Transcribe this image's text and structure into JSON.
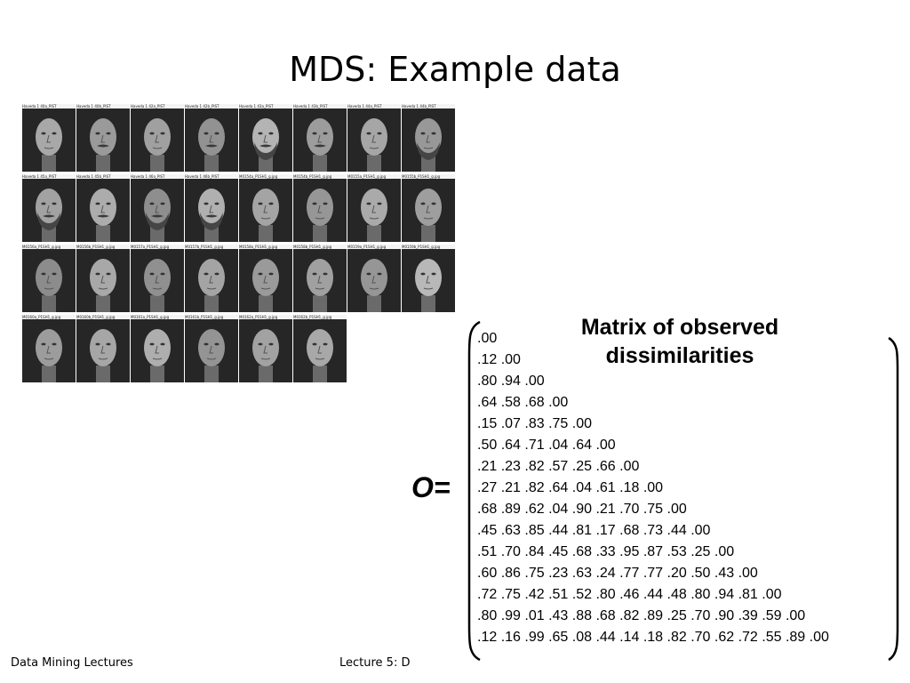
{
  "slide": {
    "title": "MDS: Example data"
  },
  "face_grid": {
    "rows": [
      [
        {
          "label": "Haveda 1 40a_PIST",
          "shade": "#a8a8a8",
          "mustache": false,
          "beard": false
        },
        {
          "label": "Haveda 1 40b_PIST",
          "shade": "#9a9a9a",
          "mustache": true,
          "beard": false
        },
        {
          "label": "Haveda 1 42a_PIST",
          "shade": "#a0a0a0",
          "mustache": false,
          "beard": false
        },
        {
          "label": "Haveda 1 42b_PIST",
          "shade": "#929292",
          "mustache": true,
          "beard": false
        },
        {
          "label": "Haveda 1 43a_PIST",
          "shade": "#b4b4b4",
          "mustache": true,
          "beard": true
        },
        {
          "label": "Haveda 1 43b_PIST",
          "shade": "#9c9c9c",
          "mustache": true,
          "beard": false
        },
        {
          "label": "Haveda 1 44a_PIST",
          "shade": "#a6a6a6",
          "mustache": false,
          "beard": false
        },
        {
          "label": "Haveda 1 44b_PIST",
          "shade": "#989898",
          "mustache": false,
          "beard": true
        }
      ],
      [
        {
          "label": "Haveda 1 45a_PIST",
          "shade": "#a2a2a2",
          "mustache": true,
          "beard": true
        },
        {
          "label": "Haveda 1 45b_PIST",
          "shade": "#acacac",
          "mustache": true,
          "beard": false
        },
        {
          "label": "Haveda 1 46a_PIST",
          "shade": "#8e8e8e",
          "mustache": true,
          "beard": true
        },
        {
          "label": "Haveda 1 46b_PIST",
          "shade": "#b0b0b0",
          "mustache": true,
          "beard": true
        },
        {
          "label": "M0154a_P1SH1_g.jpg",
          "shade": "#a4a4a4",
          "mustache": false,
          "beard": false
        },
        {
          "label": "M0154b_P1SH1_g.jpg",
          "shade": "#969696",
          "mustache": false,
          "beard": false
        },
        {
          "label": "M0155a_P1SH1_g.jpg",
          "shade": "#aaaaaa",
          "mustache": false,
          "beard": false
        },
        {
          "label": "M0155b_P1SH1_g.jpg",
          "shade": "#9e9e9e",
          "mustache": false,
          "beard": false
        }
      ],
      [
        {
          "label": "M0156a_P1SH1_g.jpg",
          "shade": "#8c8c8c",
          "mustache": false,
          "beard": false
        },
        {
          "label": "M0156b_P1SH1_g.jpg",
          "shade": "#a8a8a8",
          "mustache": false,
          "beard": false
        },
        {
          "label": "M0157a_P1SH1_g.jpg",
          "shade": "#909090",
          "mustache": false,
          "beard": false
        },
        {
          "label": "M0157b_P1SH1_g.jpg",
          "shade": "#a4a4a4",
          "mustache": false,
          "beard": false
        },
        {
          "label": "M0158a_P1SH1_g.jpg",
          "shade": "#9a9a9a",
          "mustache": false,
          "beard": false
        },
        {
          "label": "M0158b_P1SH1_g.jpg",
          "shade": "#a0a0a0",
          "mustache": false,
          "beard": false
        },
        {
          "label": "M0159a_P1SH1_g.jpg",
          "shade": "#969696",
          "mustache": false,
          "beard": false
        },
        {
          "label": "M0159b_P1SH1_g.jpg",
          "shade": "#b8b8b8",
          "mustache": false,
          "beard": false
        }
      ],
      [
        {
          "label": "M0160a_P1SH1_g.jpg",
          "shade": "#9c9c9c",
          "mustache": false,
          "beard": false
        },
        {
          "label": "M0160b_P1SH1_g.jpg",
          "shade": "#a6a6a6",
          "mustache": false,
          "beard": false
        },
        {
          "label": "M0161a_P1SH1_g.jpg",
          "shade": "#aeaeae",
          "mustache": false,
          "beard": false
        },
        {
          "label": "M0161b_P1SH1_g.jpg",
          "shade": "#949494",
          "mustache": false,
          "beard": false
        },
        {
          "label": "M0162a_P1SH1_g.jpg",
          "shade": "#a2a2a2",
          "mustache": false,
          "beard": false
        },
        {
          "label": "M0162b_P1SH1_g.jpg",
          "shade": "#a8a8a8",
          "mustache": false,
          "beard": false
        }
      ]
    ]
  },
  "matrix": {
    "heading_line1": "Matrix of observed",
    "heading_line2": "dissimilarities",
    "symbol": "O=",
    "rows": [
      ".00",
      ".12 .00",
      ".80 .94 .00",
      ".64 .58 .68 .00",
      ".15 .07 .83 .75 .00",
      ".50 .64 .71 .04 .64 .00",
      ".21 .23 .82 .57 .25 .66 .00",
      ".27 .21 .82 .64 .04 .61 .18 .00",
      ".68 .89 .62 .04 .90 .21 .70 .75 .00",
      ".45 .63 .85 .44 .81 .17 .68 .73 .44 .00",
      ".51 .70 .84 .45 .68 .33 .95 .87 .53 .25 .00",
      ".60 .86 .75 .23 .63 .24 .77 .77 .20 .50 .43 .00",
      ".72 .75 .42 .51 .52 .80 .46 .44 .48 .80 .94 .81 .00",
      ".80 .99 .01 .43 .88 .68 .82 .89 .25 .70 .90 .39 .59 .00",
      ".12 .16 .99 .65 .08 .44 .14 .18 .82 .70 .62 .72 .55 .89 .00"
    ]
  },
  "footer": {
    "left": "Data Mining Lectures",
    "center": "Lecture 5: D"
  }
}
